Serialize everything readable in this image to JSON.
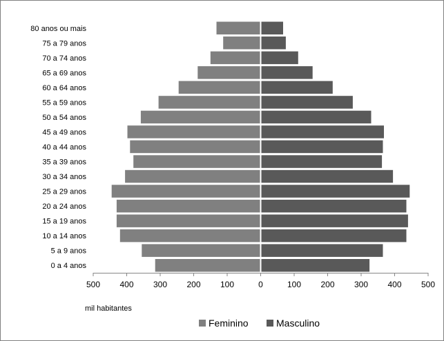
{
  "chart_data": {
    "type": "bar",
    "orientation": "horizontal",
    "layout": "population-pyramid",
    "title": "",
    "xlabel": "mil habitantes",
    "categories": [
      "0 a 4 anos",
      "5 a 9 anos",
      "10 a 14 anos",
      "15 a 19 anos",
      "20 a 24 anos",
      "25 a 29 anos",
      "30 a 34 anos",
      "35 a 39 anos",
      "40 a 44 anos",
      "45 a 49 anos",
      "50 a 54 anos",
      "55 a 59 anos",
      "60 a 64 anos",
      "65 a 69 anos",
      "70 a 74 anos",
      "75 a 79 anos",
      "80 anos ou mais"
    ],
    "series": [
      {
        "name": "Feminino",
        "color": "#808080",
        "side": "left",
        "values": [
          315,
          355,
          420,
          430,
          430,
          445,
          405,
          380,
          390,
          398,
          358,
          305,
          245,
          188,
          150,
          112,
          132
        ]
      },
      {
        "name": "Masculino",
        "color": "#595959",
        "side": "right",
        "values": [
          325,
          365,
          435,
          440,
          435,
          445,
          395,
          362,
          365,
          368,
          330,
          275,
          215,
          155,
          112,
          75,
          67
        ]
      }
    ],
    "xlim": [
      -500,
      500
    ],
    "x_ticks": [
      -500,
      -400,
      -300,
      -200,
      -100,
      0,
      100,
      200,
      300,
      400,
      500
    ],
    "x_tick_labels": [
      "500",
      "400",
      "300",
      "200",
      "100",
      "0",
      "100",
      "200",
      "300",
      "400",
      "500"
    ],
    "grid": false,
    "legend_position": "bottom"
  }
}
